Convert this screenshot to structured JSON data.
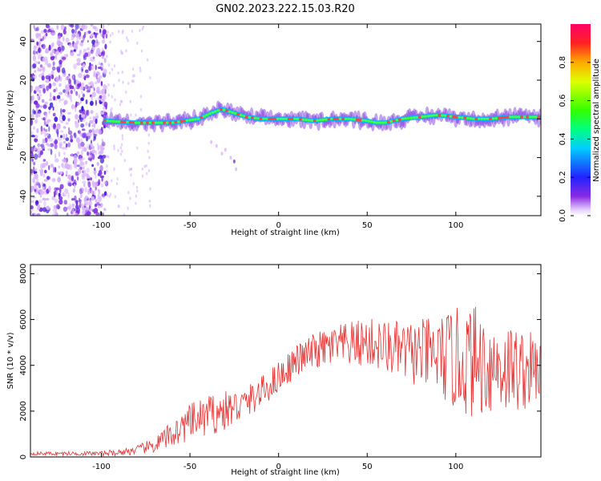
{
  "title": "GN02.2023.222.15.03.R20",
  "chart_data": [
    {
      "type": "heatmap",
      "xlabel": "Height of straight line (km)",
      "ylabel": "Frequency (Hz)",
      "xlim": [
        -140,
        148
      ],
      "ylim": [
        -50,
        49
      ],
      "x_ticks": [
        -100,
        -50,
        0,
        50,
        100
      ],
      "y_ticks": [
        -40,
        -20,
        0,
        20,
        40
      ],
      "colorbar": {
        "label": "Normalized spectral amplitude",
        "range": [
          0,
          1
        ],
        "ticks": [
          0.0,
          0.2,
          0.4,
          0.6,
          0.8
        ]
      },
      "ridge": {
        "x": [
          -98,
          -80,
          -60,
          -45,
          -38,
          -32,
          -25,
          -18,
          -10,
          0,
          10,
          20,
          30,
          40,
          50,
          55,
          60,
          65,
          70,
          80,
          90,
          100,
          110,
          120,
          130,
          140,
          148
        ],
        "y": [
          -1,
          -2,
          -2,
          0,
          3,
          5,
          3,
          1,
          0,
          0,
          0,
          -1,
          0,
          0,
          -1,
          -2,
          -2,
          -1,
          0,
          1,
          2,
          1,
          0,
          0,
          1,
          1,
          1
        ]
      },
      "noise_region_x": [
        -140,
        -97
      ],
      "colors": [
        "#ffffff",
        "#d9b3ff",
        "#7b2fe0",
        "#3c1cd8",
        "#00b4ff",
        "#00e0a0",
        "#40ff40",
        "#ff4040"
      ]
    },
    {
      "type": "line",
      "xlabel": "Height of straight line (km)",
      "ylabel": "SNR (10 * v/v)",
      "xlim": [
        -140,
        148
      ],
      "ylim": [
        0,
        8400
      ],
      "x_ticks": [
        -100,
        -50,
        0,
        50,
        100
      ],
      "y_ticks": [
        0,
        2000,
        4000,
        6000,
        8000
      ],
      "line_color": "#e83030",
      "envelope": {
        "x": [
          -140,
          -100,
          -90,
          -80,
          -70,
          -60,
          -50,
          -40,
          -30,
          -20,
          -10,
          0,
          10,
          20,
          30,
          40,
          50,
          60,
          70,
          80,
          90,
          100,
          110,
          120,
          130,
          140,
          148
        ],
        "mean": [
          150,
          150,
          200,
          300,
          500,
          1000,
          1500,
          1800,
          2000,
          2300,
          2800,
          3500,
          4200,
          4600,
          4800,
          4900,
          5000,
          4800,
          4600,
          4500,
          4400,
          4200,
          4200,
          4000,
          3900,
          3800,
          3800
        ],
        "amplitude": [
          80,
          100,
          150,
          200,
          350,
          600,
          800,
          900,
          900,
          700,
          700,
          700,
          700,
          800,
          900,
          1000,
          1100,
          1200,
          1300,
          1500,
          1800,
          2300,
          2500,
          2200,
          2000,
          1800,
          1400
        ]
      }
    }
  ]
}
